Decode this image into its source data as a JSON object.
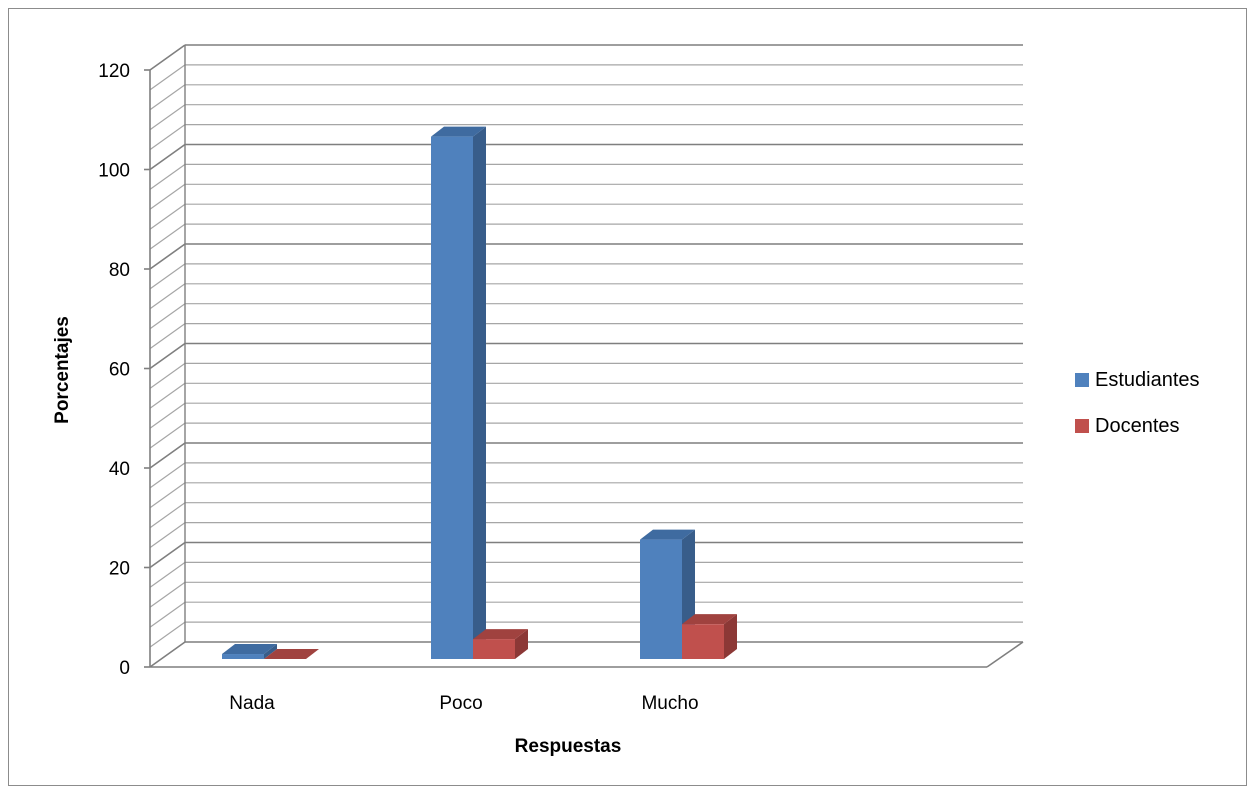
{
  "chart_data": {
    "type": "bar",
    "categories": [
      "Nada",
      "Poco",
      "Mucho"
    ],
    "series": [
      {
        "name": "Estudiantes",
        "values": [
          1,
          105,
          24
        ],
        "color": "#4F81BD",
        "side_color": "#385D8A",
        "top_color": "#3F6BA0"
      },
      {
        "name": "Docentes",
        "values": [
          0,
          4,
          7
        ],
        "color": "#C0504D",
        "side_color": "#8C3836",
        "top_color": "#A0423F"
      }
    ],
    "title": "",
    "xlabel": "Respuestas",
    "ylabel": "Porcentajes",
    "ylim": [
      0,
      120
    ],
    "yticks": [
      0,
      20,
      40,
      60,
      80,
      100,
      120
    ],
    "grid": true,
    "legend_position": "right",
    "style": "3d-clustered-column"
  }
}
